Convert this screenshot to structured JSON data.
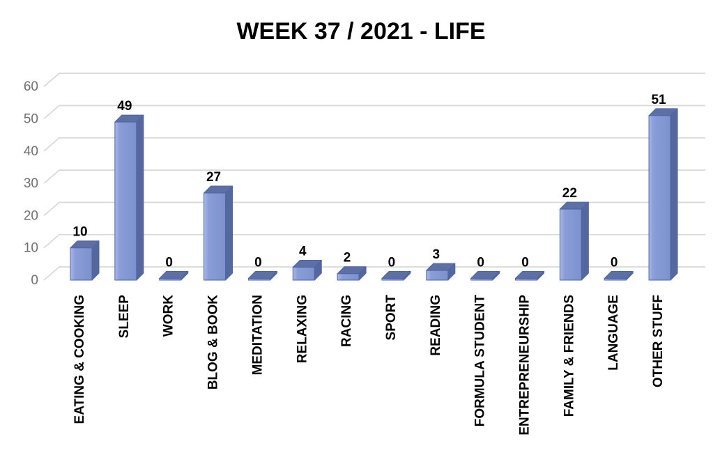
{
  "title": "WEEK 37 / 2021 - LIFE",
  "chart_data": {
    "type": "bar",
    "style": "3d-bar",
    "title": "WEEK 37 / 2021 - LIFE",
    "xlabel": "",
    "ylabel": "",
    "categories": [
      "EATING & COOKING",
      "SLEEP",
      "WORK",
      "BLOG & BOOK",
      "MEDITATION",
      "RELAXING",
      "RACING",
      "SPORT",
      "READING",
      "FORMULA STUDENT",
      "ENTREPRENEURSHIP",
      "FAMILY & FRIENDS",
      "LANGUAGE",
      "OTHER STUFF"
    ],
    "values": [
      10,
      49,
      0,
      27,
      0,
      4,
      2,
      0,
      3,
      0,
      0,
      22,
      0,
      51
    ],
    "yticks": [
      0,
      10,
      20,
      30,
      40,
      50,
      60
    ],
    "ylim": [
      0,
      60
    ],
    "grid": true,
    "legend": false,
    "data_labels": true,
    "colors": {
      "background": "#FFFFFF",
      "title": "#000000",
      "bar_front_light": "#AAB8E6",
      "bar_front": "#8A9DD8",
      "bar_front_dark": "#7C91CE",
      "bar_side": "#54689F",
      "bar_top": "#5D6FA3",
      "bar_outline": "#4B66A9",
      "gridline": "#D8D8D8",
      "tick_label": "#6F6F6F",
      "data_label": "#000000",
      "category_label": "#000000"
    }
  }
}
